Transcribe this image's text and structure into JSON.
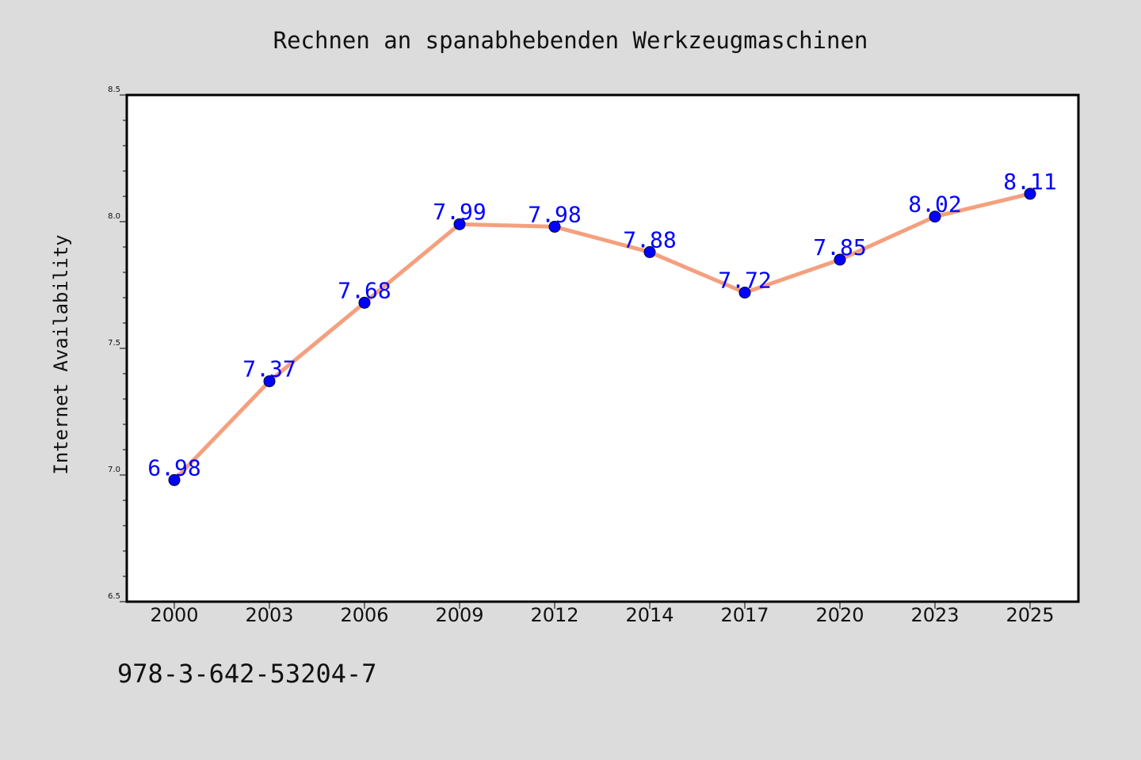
{
  "chart_data": {
    "type": "line",
    "title": "Rechnen an spanabhebenden Werkzeugmaschinen",
    "xlabel": "",
    "ylabel": "Internet Availability",
    "categories": [
      "2000",
      "2003",
      "2006",
      "2009",
      "2012",
      "2014",
      "2017",
      "2020",
      "2023",
      "2025"
    ],
    "series": [
      {
        "values": [
          6.98,
          7.37,
          7.68,
          7.99,
          7.98,
          7.88,
          7.72,
          7.85,
          8.02,
          8.11
        ],
        "data_labels": [
          "6.98",
          "7.37",
          "7.68",
          "7.99",
          "7.98",
          "7.88",
          "7.72",
          "7.85",
          "8.02",
          "8.11"
        ]
      }
    ],
    "ylim": [
      6.5,
      8.5
    ],
    "yticks": [
      6.5,
      7.0,
      7.5,
      8.0,
      8.5
    ],
    "ytick_labels": [
      "6.5",
      "7.0",
      "7.5",
      "8.0",
      "8.5"
    ],
    "grid": false,
    "colors": {
      "line": "#f4a07e",
      "marker": "#0000ff",
      "data_label": "#0000ff",
      "plot_background": "#ffffff",
      "page_background": "#dcdcdc"
    }
  },
  "footer": {
    "note": "978-3-642-53204-7"
  }
}
